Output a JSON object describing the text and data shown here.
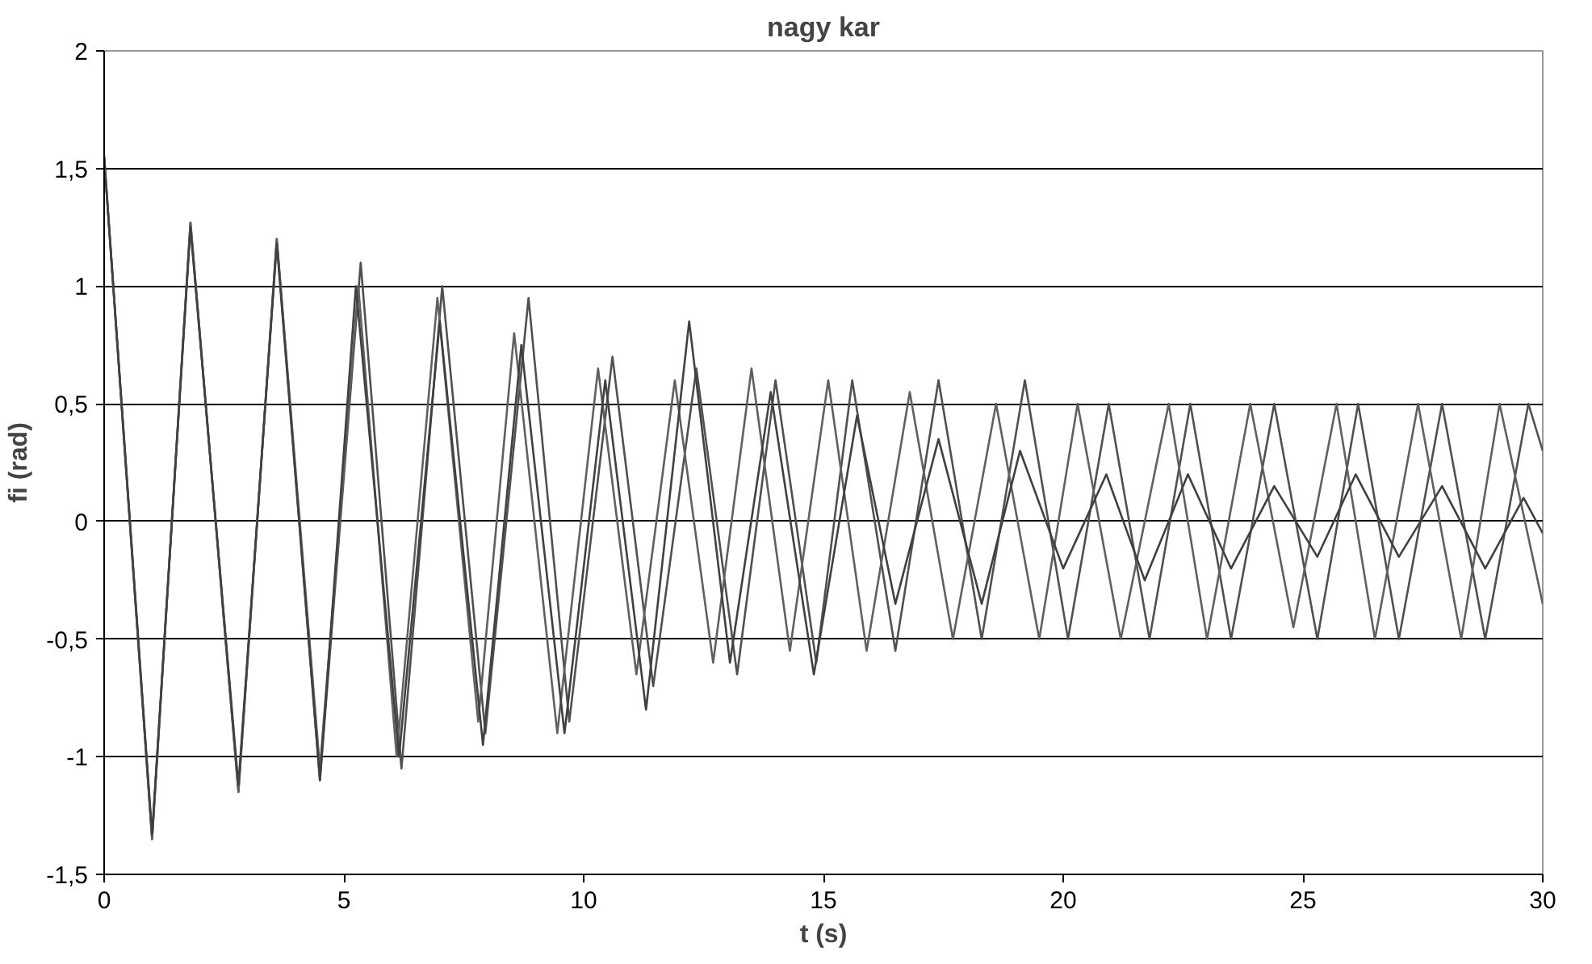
{
  "chart_data": {
    "type": "line",
    "title": "nagy kar",
    "xlabel": "t (s)",
    "ylabel": "fi (rad)",
    "xlim": [
      0,
      30
    ],
    "xticks": [
      0,
      5,
      10,
      15,
      20,
      25,
      30
    ],
    "ylim": [
      -1.5,
      2
    ],
    "yticks": [
      {
        "value": -1.5,
        "label": "-1,5"
      },
      {
        "value": -1,
        "label": "-1"
      },
      {
        "value": -0.5,
        "label": "-0,5"
      },
      0,
      {
        "value": 0.5,
        "label": "0,5"
      },
      1,
      {
        "value": 1.5,
        "label": "1,5"
      },
      2
    ],
    "grid": "y",
    "marker": "none",
    "line_style": "solid",
    "series": [
      {
        "color": "#505050",
        "x": [
          0,
          1.0,
          1.8,
          2.8,
          3.6,
          4.5,
          5.35,
          6.2,
          7.05,
          7.95,
          8.85,
          9.7,
          10.6,
          11.45,
          12.35,
          13.2,
          14.0,
          14.85,
          15.6,
          16.5,
          17.4,
          18.3,
          19.2,
          20.1,
          20.95,
          21.8,
          22.65,
          23.5,
          24.4,
          25.3,
          26.15,
          27.0,
          27.9,
          28.8,
          29.7,
          30
        ],
        "values": [
          1.55,
          -1.35,
          1.27,
          -1.15,
          1.2,
          -1.1,
          1.1,
          -1.05,
          1.0,
          -0.9,
          0.95,
          -0.85,
          0.7,
          -0.7,
          0.65,
          -0.65,
          0.6,
          -0.6,
          0.6,
          -0.55,
          0.6,
          -0.5,
          0.6,
          -0.5,
          0.5,
          -0.5,
          0.5,
          -0.5,
          0.5,
          -0.5,
          0.5,
          -0.5,
          0.5,
          -0.5,
          0.5,
          0.3
        ]
      },
      {
        "color": "#606060",
        "x": [
          0,
          1.0,
          1.8,
          2.8,
          3.6,
          4.5,
          5.3,
          6.1,
          6.95,
          7.8,
          8.55,
          9.45,
          10.3,
          11.1,
          11.9,
          12.7,
          13.5,
          14.3,
          15.1,
          15.9,
          16.8,
          17.7,
          18.6,
          19.5,
          20.3,
          21.2,
          22.2,
          23.0,
          23.9,
          24.8,
          25.7,
          26.5,
          27.4,
          28.3,
          29.1,
          30
        ],
        "values": [
          1.55,
          -1.35,
          1.27,
          -1.15,
          1.2,
          -1.05,
          1.0,
          -1.0,
          0.95,
          -0.85,
          0.8,
          -0.9,
          0.65,
          -0.65,
          0.6,
          -0.6,
          0.65,
          -0.55,
          0.6,
          -0.55,
          0.55,
          -0.5,
          0.5,
          -0.5,
          0.5,
          -0.5,
          0.5,
          -0.5,
          0.5,
          -0.45,
          0.5,
          -0.5,
          0.5,
          -0.5,
          0.5,
          -0.35
        ]
      },
      {
        "color": "#404040",
        "x": [
          0,
          1.0,
          1.8,
          2.8,
          3.6,
          4.5,
          5.25,
          6.15,
          7.0,
          7.9,
          8.7,
          9.6,
          10.45,
          11.3,
          12.2,
          13.05,
          13.9,
          14.8,
          15.7,
          16.5,
          17.4,
          18.3,
          19.1,
          20.0,
          20.9,
          21.7,
          22.6,
          23.5,
          24.4,
          25.3,
          26.1,
          27.0,
          27.9,
          28.8,
          29.6,
          30
        ],
        "values": [
          1.55,
          -1.33,
          1.25,
          -1.12,
          1.18,
          -1.1,
          1.0,
          -1.0,
          0.85,
          -0.95,
          0.75,
          -0.9,
          0.6,
          -0.8,
          0.85,
          -0.6,
          0.55,
          -0.65,
          0.45,
          -0.35,
          0.35,
          -0.35,
          0.3,
          -0.2,
          0.2,
          -0.25,
          0.2,
          -0.2,
          0.15,
          -0.15,
          0.2,
          -0.15,
          0.15,
          -0.2,
          0.1,
          -0.05
        ]
      }
    ]
  }
}
